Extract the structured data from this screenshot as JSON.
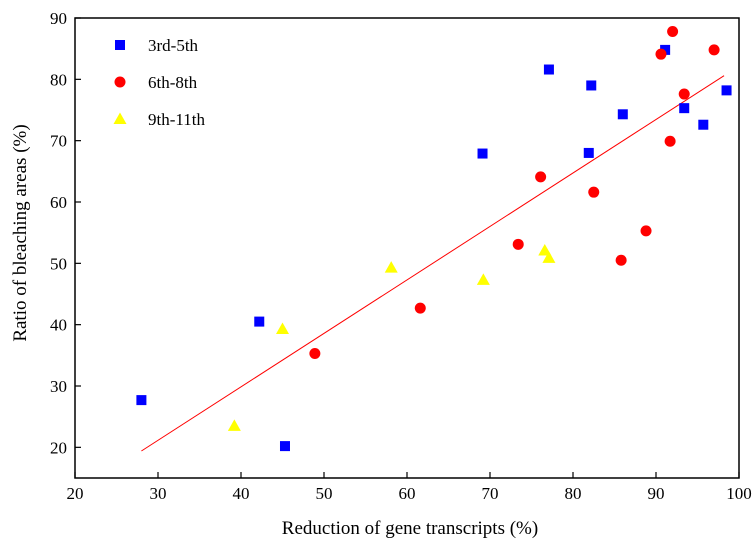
{
  "chart_data": {
    "type": "scatter",
    "title": "",
    "xlabel": "Reduction of gene transcripts (%)",
    "ylabel": "Ratio of bleaching areas (%)",
    "xlim": [
      20,
      100
    ],
    "ylim": [
      15,
      90
    ],
    "xticks": [
      20,
      30,
      40,
      50,
      60,
      70,
      80,
      90,
      100
    ],
    "yticks": [
      20,
      30,
      40,
      50,
      60,
      70,
      80,
      90
    ],
    "grid": false,
    "legend_position": "top-left",
    "series": [
      {
        "name": "3rd-5th",
        "marker": "square",
        "color": "#0000ff",
        "points": [
          [
            28,
            27.7
          ],
          [
            42.2,
            40.5
          ],
          [
            45.3,
            20.2
          ],
          [
            69.1,
            67.9
          ],
          [
            77.1,
            81.6
          ],
          [
            81.9,
            68.0
          ],
          [
            82.2,
            79.0
          ],
          [
            86.0,
            74.3
          ],
          [
            91.1,
            84.8
          ],
          [
            93.4,
            75.3
          ],
          [
            95.7,
            72.6
          ],
          [
            98.5,
            78.2
          ]
        ]
      },
      {
        "name": "6th-8th",
        "marker": "circle",
        "color": "#ff0000",
        "points": [
          [
            48.9,
            35.3
          ],
          [
            61.6,
            42.7
          ],
          [
            73.4,
            53.1
          ],
          [
            76.1,
            64.1
          ],
          [
            82.5,
            61.6
          ],
          [
            85.8,
            50.5
          ],
          [
            88.8,
            55.3
          ],
          [
            90.6,
            84.1
          ],
          [
            91.7,
            69.9
          ],
          [
            92.0,
            87.8
          ],
          [
            93.4,
            77.6
          ],
          [
            97.0,
            84.8
          ]
        ]
      },
      {
        "name": "9th-11th",
        "marker": "triangle",
        "color": "#ffff00",
        "points": [
          [
            39.2,
            23.5
          ],
          [
            45.0,
            39.3
          ],
          [
            58.1,
            49.3
          ],
          [
            69.2,
            47.3
          ],
          [
            76.6,
            52.1
          ],
          [
            77.1,
            50.9
          ]
        ]
      }
    ],
    "trendline": {
      "color": "#ff0000",
      "from": [
        28,
        19.4
      ],
      "to": [
        98.2,
        80.6
      ]
    }
  }
}
